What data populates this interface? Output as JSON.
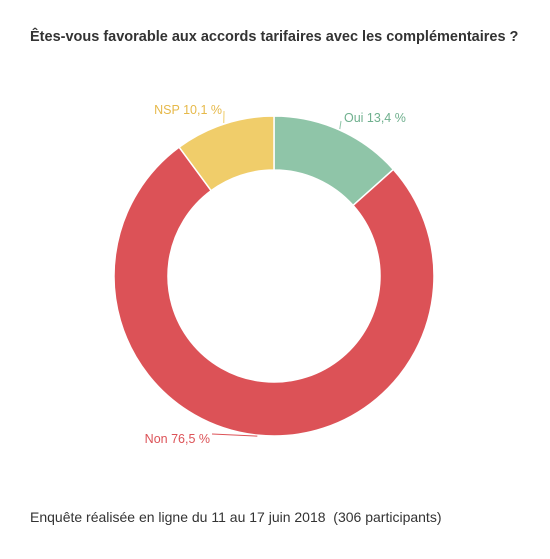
{
  "chart_data": {
    "type": "pie",
    "donut": true,
    "title": "Êtes-vous favorable aux accords tarifaires avec les complémentaires ?",
    "slices": [
      {
        "label": "Oui",
        "value": 13.4,
        "display": "Oui 13,4 %",
        "color": "#8fc5a8"
      },
      {
        "label": "Non",
        "value": 76.5,
        "display": "Non 76,5 %",
        "color": "#dc5257"
      },
      {
        "label": "NSP",
        "value": 10.1,
        "display": "NSP 10,1 %",
        "color": "#f0cd6a"
      }
    ],
    "legend": "none"
  },
  "footer": {
    "text": "Enquête réalisée en ligne du 11 au 17 juin 2018  (306 participants)"
  }
}
